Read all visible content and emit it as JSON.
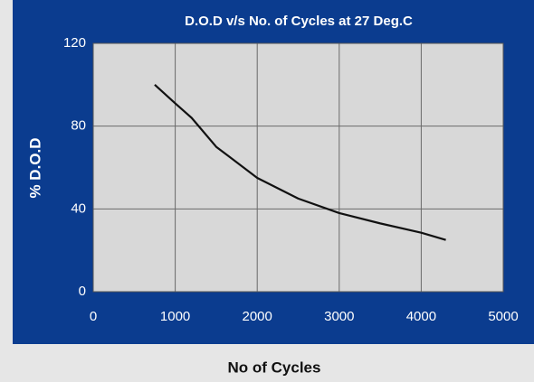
{
  "chart_data": {
    "type": "line",
    "title": "D.O.D v/s No. of Cycles at 27 Deg.C",
    "ylabel": "% D.O.D",
    "xlabel": "No of Cycles",
    "x": [
      750,
      1000,
      1200,
      1500,
      2000,
      2500,
      3000,
      3500,
      4000,
      4300
    ],
    "series": [
      {
        "name": "D.O.D",
        "color": "#111111",
        "values": [
          100,
          91,
          84,
          70,
          55,
          45,
          38,
          33,
          28.5,
          25
        ]
      }
    ],
    "xlim": [
      0,
      5000
    ],
    "xticks": [
      0,
      1000,
      2000,
      3000,
      4000,
      5000
    ],
    "ylim": [
      0,
      120
    ],
    "yticks": [
      0,
      40,
      80,
      120
    ],
    "grid": true
  }
}
